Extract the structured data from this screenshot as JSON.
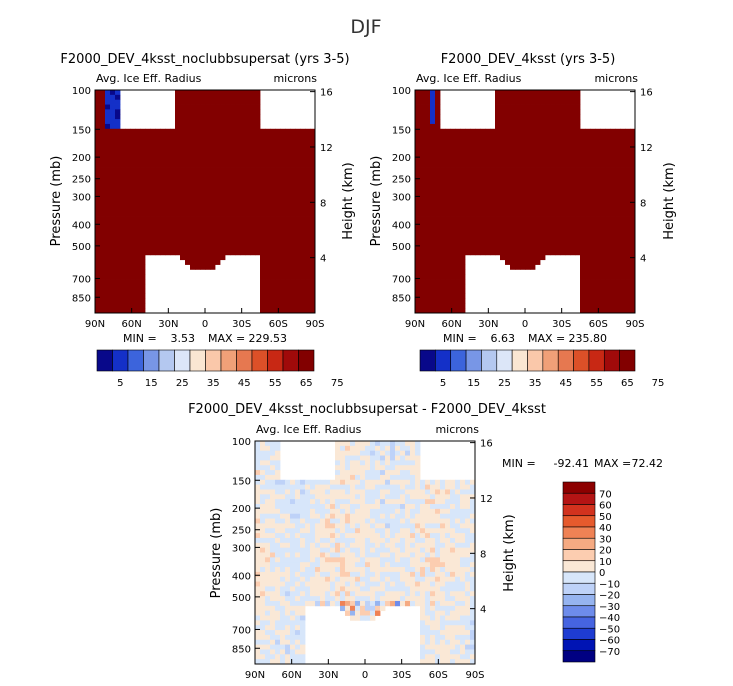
{
  "figure": {
    "title": "DJF"
  },
  "chart_data": [
    {
      "type": "heatmap",
      "title": "F2000_DEV_4ksst_noclubbsupersat (yrs 3-5)",
      "left_label": "Avg. Ice Eff. Radius",
      "right_label": "microns",
      "ylabel": "Pressure (mb)",
      "y2label": "Height (km)",
      "x_ticks": [
        "90N",
        "60N",
        "30N",
        "0",
        "30S",
        "60S",
        "90S"
      ],
      "y_ticks": [
        "100",
        "150",
        "200",
        "250",
        "300",
        "400",
        "500",
        "700",
        "850"
      ],
      "y2_ticks": [
        "16",
        "12",
        "8",
        "4"
      ],
      "stats": {
        "min_label": "MIN =",
        "min": "3.53",
        "max_label": "MAX =",
        "max": "229.53"
      },
      "colorbar": {
        "labels": [
          "5",
          "15",
          "25",
          "35",
          "45",
          "55",
          "65",
          "75"
        ],
        "levels": [
          0,
          10,
          20,
          30,
          40,
          50,
          60,
          70,
          80
        ],
        "max": 235
      },
      "field": {
        "max_re": 229.53
      }
    },
    {
      "type": "heatmap",
      "title": "F2000_DEV_4ksst (yrs 3-5)",
      "left_label": "Avg. Ice Eff. Radius",
      "right_label": "microns",
      "ylabel": "Pressure (mb)",
      "y2label": "Height (km)",
      "x_ticks": [
        "90N",
        "60N",
        "30N",
        "0",
        "30S",
        "60S",
        "90S"
      ],
      "y_ticks": [
        "100",
        "150",
        "200",
        "250",
        "300",
        "400",
        "500",
        "700",
        "850"
      ],
      "y2_ticks": [
        "16",
        "12",
        "8",
        "4"
      ],
      "stats": {
        "min_label": "MIN =",
        "min": "6.63",
        "max_label": "MAX =",
        "max": "235.80"
      },
      "colorbar": {
        "labels": [
          "5",
          "15",
          "25",
          "35",
          "45",
          "55",
          "65",
          "75"
        ],
        "levels": [
          0,
          10,
          20,
          30,
          40,
          50,
          60,
          70,
          80
        ],
        "max": 235
      },
      "field": {
        "max_re": 235.8
      }
    },
    {
      "type": "heatmap",
      "title": "F2000_DEV_4ksst_noclubbsupersat - F2000_DEV_4ksst",
      "left_label": "Avg. Ice Eff. Radius",
      "right_label": "microns",
      "ylabel": "Pressure (mb)",
      "y2label": "Height (km)",
      "x_ticks": [
        "90N",
        "60N",
        "30N",
        "0",
        "30S",
        "60S",
        "90S"
      ],
      "y_ticks": [
        "100",
        "150",
        "200",
        "250",
        "300",
        "400",
        "500",
        "700",
        "850"
      ],
      "y2_ticks": [
        "16",
        "12",
        "8",
        "4"
      ],
      "stats": {
        "min_label": "MIN =",
        "min": "-92.41",
        "max_label": "MAX =",
        "max": "72.42"
      },
      "colorbar": {
        "labels": [
          "70",
          "60",
          "50",
          "40",
          "30",
          "20",
          "10",
          "0",
          "−10",
          "−20",
          "−30",
          "−40",
          "−50",
          "−60",
          "−70"
        ]
      },
      "field": {
        "min_diff": -92.41,
        "max_diff": 72.42
      }
    }
  ],
  "colors": {
    "seq": [
      "#08088a",
      "#1430c8",
      "#3c64dc",
      "#7896e6",
      "#b4c8f0",
      "#dce6f8",
      "#fae6d2",
      "#fac8aa",
      "#f0a078",
      "#e67850",
      "#dc5028",
      "#c82814",
      "#a00a0a",
      "#820000"
    ],
    "div": [
      "#000082",
      "#0014b4",
      "#1e3cd2",
      "#4664e1",
      "#6e8ceb",
      "#96b4f0",
      "#bed2f8",
      "#d7e6fa",
      "#fae8d6",
      "#fccdb0",
      "#f5aa82",
      "#ef8255",
      "#e65a2d",
      "#d2321e",
      "#b41414",
      "#8c0000"
    ]
  }
}
